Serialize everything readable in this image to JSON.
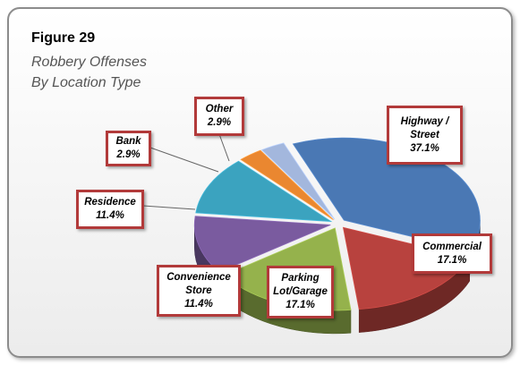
{
  "chart_data": {
    "type": "pie3d",
    "title": "Figure 29",
    "subtitle": "Robbery Offenses By Location Type",
    "categories": [
      "Highway / Street",
      "Commercial",
      "Parking Lot/Garage",
      "Convenience Store",
      "Residence",
      "Bank",
      "Other"
    ],
    "values": [
      37.1,
      17.1,
      17.1,
      11.4,
      11.4,
      2.9,
      2.9
    ],
    "value_labels": [
      "37.1%",
      "17.1%",
      "17.1%",
      "11.4%",
      "11.4%",
      "2.9%",
      "2.9%"
    ],
    "colors": [
      "#4a78b4",
      "#b8423e",
      "#95b24c",
      "#7a5b9f",
      "#3ba3bf",
      "#ea8730",
      "#a3b7dd"
    ]
  }
}
